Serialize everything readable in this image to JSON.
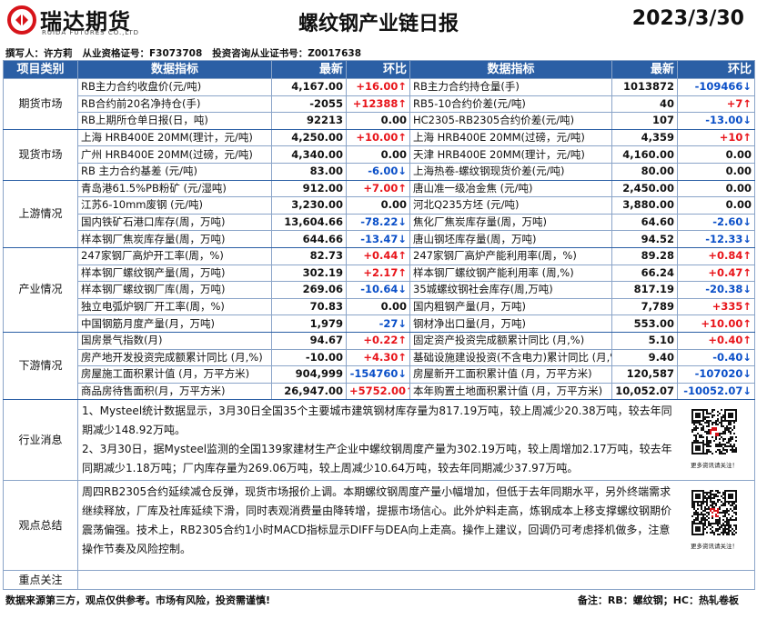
{
  "header": {
    "logo": "瑞达期货",
    "logo_en": "RUIDA FUTURES CO.,LTD",
    "title": "螺纹钢产业链日报",
    "date": "2023/3/30"
  },
  "author": "撰写人：许方莉   从业资格证号：F3073708   投资咨询从业证书号：Z0017638",
  "table": {
    "columns": [
      "项目类别",
      "数据指标",
      "最新",
      "环比",
      "数据指标",
      "最新",
      "环比"
    ],
    "sections": [
      {
        "category": "期货市场",
        "rows": [
          [
            "RB主力合约收盘价(元/吨)",
            "4,167.00",
            "+16.00↑",
            "RB主力合约持仓量(手)",
            "1013872",
            "-109466↓"
          ],
          [
            "RB合约前20名净持仓(手)",
            "-2055",
            "+12388↑",
            "RB5-10合约价差(元/吨)",
            "40",
            "+7↑"
          ],
          [
            "RB上期所仓单日报(日，吨)",
            "92213",
            "0.00",
            "HC2305-RB2305合约价差(元/吨)",
            "107",
            "-13.00↓"
          ]
        ]
      },
      {
        "category": "现货市场",
        "rows": [
          [
            "上海 HRB400E 20MM(理计，元/吨)",
            "4,250.00",
            "+10.00↑",
            "上海 HRB400E 20MM(过磅，元/吨)",
            "4,359",
            "+10↑"
          ],
          [
            "广州 HRB400E 20MM(过磅，元/吨)",
            "4,340.00",
            "0.00",
            "天津 HRB400E 20MM(理计，元/吨)",
            "4,160.00",
            "0.00"
          ],
          [
            "RB 主力合约基差 (元/吨)",
            "83.00",
            "-6.00↓",
            "上海热卷-螺纹钢现货价差(元/吨)",
            "80.00",
            "0.00"
          ]
        ]
      },
      {
        "category": "上游情况",
        "rows": [
          [
            "青岛港61.5%PB粉矿 (元/湿吨)",
            "912.00",
            "+7.00↑",
            "唐山准一级冶金焦 (元/吨)",
            "2,450.00",
            "0.00"
          ],
          [
            "江苏6-10mm废钢 (元/吨)",
            "3,230.00",
            "0.00",
            "河北Q235方坯 (元/吨)",
            "3,880.00",
            "0.00"
          ],
          [
            "国内铁矿石港口库存(周，万吨)",
            "13,604.66",
            "-78.22↓",
            "焦化厂焦炭库存量(周，万吨)",
            "64.60",
            "-2.60↓"
          ],
          [
            "样本钢厂焦炭库存量(周，万吨)",
            "644.66",
            "-13.47↓",
            "唐山钢坯库存量(周，万吨)",
            "94.52",
            "-12.33↓"
          ]
        ]
      },
      {
        "category": "产业情况",
        "rows": [
          [
            "247家钢厂高炉开工率(周，%)",
            "82.73",
            "+0.44↑",
            "247家钢厂高炉产能利用率(周，%)",
            "89.28",
            "+0.84↑"
          ],
          [
            "样本钢厂螺纹钢产量(周，万吨)",
            "302.19",
            "+2.17↑",
            "样本钢厂螺纹钢产能利用率 (周,%)",
            "66.24",
            "+0.47↑"
          ],
          [
            "样本钢厂螺纹钢厂库(周，万吨)",
            "269.06",
            "-10.64↓",
            "35城螺纹钢社会库存(周,万吨)",
            "817.19",
            "-20.38↓"
          ],
          [
            "独立电弧炉钢厂开工率(周，%)",
            "70.83",
            "0.00",
            "国内粗钢产量(月，万吨)",
            "7,789",
            "+335↑"
          ],
          [
            "中国钢筋月度产量(月，万吨)",
            "1,979",
            "-27↓",
            "钢材净出口量(月，万吨)",
            "553.00",
            "+10.00↑"
          ]
        ]
      },
      {
        "category": "下游情况",
        "rows": [
          [
            "国房景气指数(月)",
            "94.67",
            "+0.22↑",
            "固定资产投资完成额累计同比 (月,%)",
            "5.10",
            "+0.40↑"
          ],
          [
            "房产地开发投资完成额累计同比 (月,%)",
            "-10.00",
            "+4.30↑",
            "基础设施建设投资(不含电力)累计同比 (月,%",
            "9.40",
            "-0.40↓"
          ],
          [
            "房屋施工面积累计值 (月，万平方米)",
            "904,999",
            "-154760↓",
            "房屋新开工面积累计值 (月，万平方米)",
            "120,587",
            "-107020↓"
          ],
          [
            "商品房待售面积(月，万平方米)",
            "26,947.00",
            "+5752.00↑",
            "本年购置土地面积累计值 (月，万平方米)",
            "10,052.07",
            "-10052.07↓"
          ]
        ]
      }
    ],
    "news": {
      "category": "行业消息",
      "paragraphs": [
        "1、Mysteel统计数据显示，3月30日全国35个主要城市建筑钢材库存量为817.19万吨，较上周减少20.38万吨，较去年同期减少148.92万吨。",
        "2、3月30日，据Mysteel监测的全国139家建材生产企业中螺纹钢周度产量为302.19万吨，较上周增加2.17万吨，较去年同期减少1.18万吨；厂内库存量为269.06万吨，较上周减少10.64万吨，较去年同期减少37.97万吨。"
      ],
      "qr_caption": "更多资讯请关注！"
    },
    "summary": {
      "category": "观点总结",
      "text": "周四RB2305合约延续减仓反弹，现货市场报价上调。本期螺纹钢周度产量小幅增加，但低于去年同期水平，另外终端需求继续释放，厂库及社库延续下滑，同时表观消费量由降转增，提振市场信心。此外炉料走高，炼钢成本上移支撑螺纹钢期价震荡偏强。技术上，RB2305合约1小时MACD指标显示DIFF与DEA向上走高。操作上建议，回调仍可考虑择机做多，注意操作节奏及风险控制。",
      "qr_caption": "更多资讯请关注！"
    },
    "focus": {
      "category": "重点关注"
    }
  },
  "footer": {
    "disclaimer": "数据来源第三方，观点仅供参考。市场有风险，投资需谨慎!",
    "note": "备注：RB：螺纹钢；HC：热轧卷板"
  }
}
